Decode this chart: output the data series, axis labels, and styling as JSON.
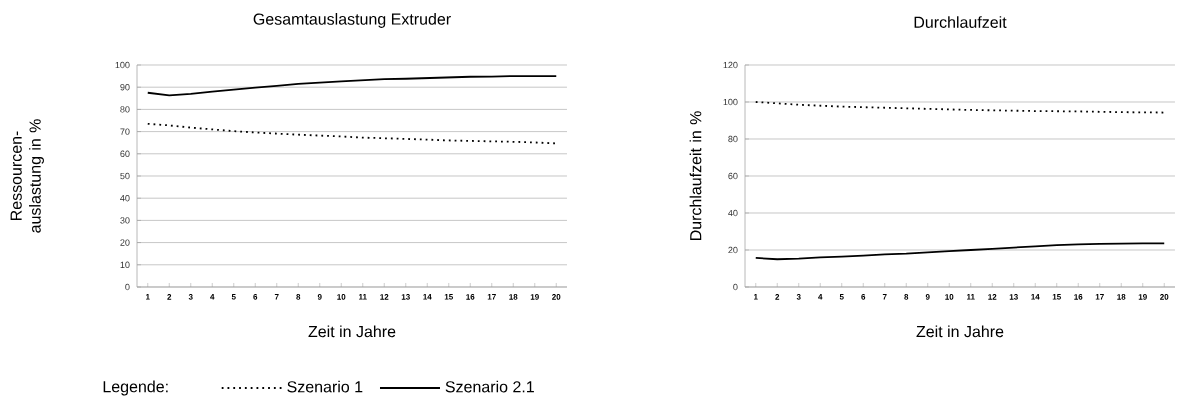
{
  "chart_data": [
    {
      "type": "line",
      "title": "Gesamtauslastung Extruder",
      "xlabel": "Zeit in Jahre",
      "ylabel": "Ressourcen-auslastung in %",
      "legend_title": "Legende:",
      "legend": "bottom",
      "grid": "y",
      "categories": [
        "1",
        "2",
        "3",
        "4",
        "5",
        "6",
        "7",
        "8",
        "9",
        "10",
        "11",
        "12",
        "13",
        "14",
        "15",
        "16",
        "17",
        "18",
        "19",
        "20"
      ],
      "ylim": [
        0,
        100
      ],
      "yticks": [
        0,
        10,
        20,
        30,
        40,
        50,
        60,
        70,
        80,
        90,
        100
      ],
      "series": [
        {
          "name": "Szenario 1",
          "color": "#000000",
          "line_style": "dotted",
          "values": [
            73.5,
            72.8,
            71.8,
            71,
            70.2,
            69.6,
            69.1,
            68.6,
            68.2,
            67.8,
            67.3,
            67,
            66.7,
            66.4,
            66,
            65.8,
            65.6,
            65.4,
            65.1,
            64.7
          ]
        },
        {
          "name": "Szenario 2.1",
          "color": "#000000",
          "line_style": "solid",
          "values": [
            87.5,
            86.3,
            87,
            88,
            88.9,
            89.8,
            90.6,
            91.5,
            92.1,
            92.6,
            93.1,
            93.6,
            93.8,
            94.1,
            94.4,
            94.7,
            94.8,
            95,
            95,
            95
          ]
        }
      ]
    },
    {
      "type": "line",
      "title": "Durchlaufzeit",
      "xlabel": "Zeit in Jahre",
      "ylabel": "Durchlaufzeit in %",
      "grid": "y",
      "categories": [
        "1",
        "2",
        "3",
        "4",
        "5",
        "6",
        "7",
        "8",
        "9",
        "10",
        "11",
        "12",
        "13",
        "14",
        "15",
        "16",
        "17",
        "18",
        "19",
        "20"
      ],
      "ylim": [
        0,
        120
      ],
      "yticks": [
        0,
        20,
        40,
        60,
        80,
        100,
        120
      ],
      "series": [
        {
          "color": "#000000",
          "line_style": "dotted",
          "values": [
            100,
            99.3,
            98.5,
            98,
            97.5,
            97.2,
            96.9,
            96.6,
            96.3,
            96,
            95.7,
            95.5,
            95.3,
            95.1,
            95,
            94.9,
            94.7,
            94.5,
            94.4,
            94.3
          ]
        },
        {
          "color": "#000000",
          "line_style": "solid",
          "values": [
            15.7,
            15,
            15.3,
            16,
            16.4,
            17,
            17.6,
            18,
            18.7,
            19.4,
            20,
            20.6,
            21.3,
            22,
            22.6,
            23,
            23.3,
            23.4,
            23.6,
            23.6
          ]
        }
      ]
    }
  ]
}
